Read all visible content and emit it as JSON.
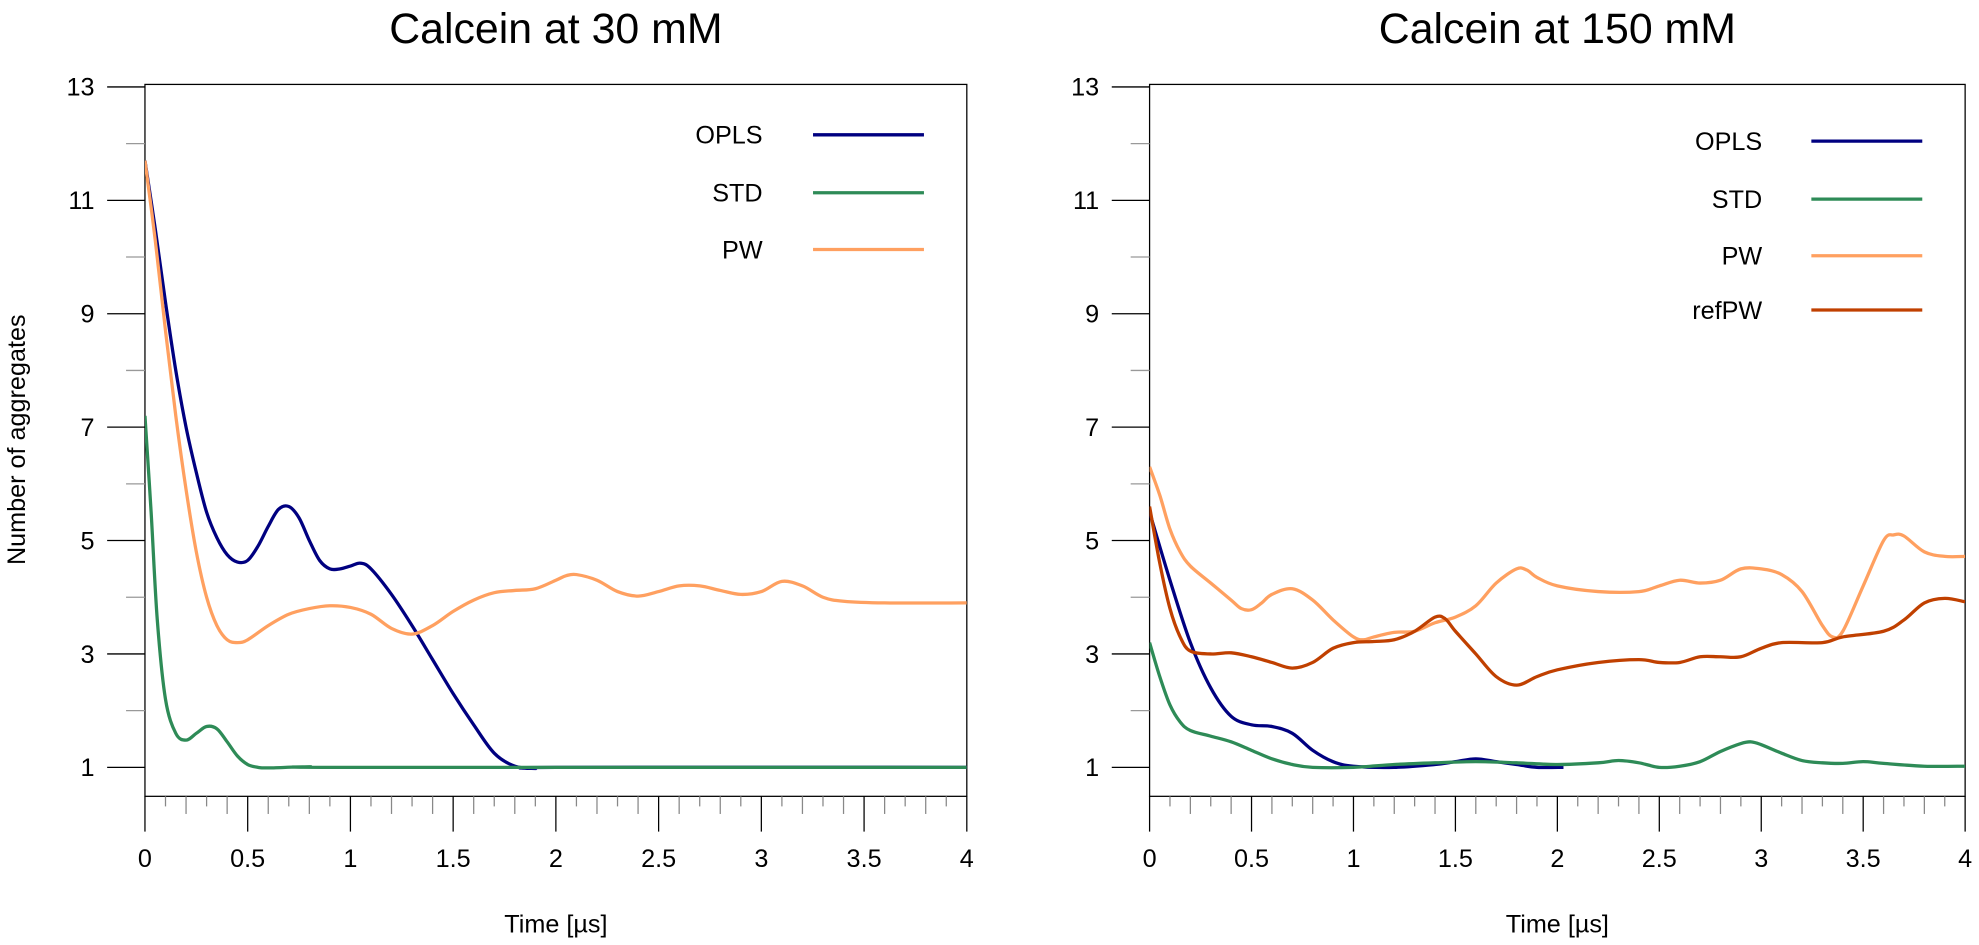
{
  "chart_data": [
    {
      "type": "line",
      "title": "Calcein at 30 mM",
      "xlabel": "Time [µs]",
      "ylabel": "Number of aggregates",
      "xlim": [
        0,
        4
      ],
      "ylim": [
        0.5,
        13
      ],
      "xticks": [
        "0",
        "0.5",
        "1",
        "1.5",
        "2",
        "2.5",
        "3",
        "3.5",
        "4"
      ],
      "yticks": [
        "1",
        "3",
        "5",
        "7",
        "9",
        "11",
        "13"
      ],
      "grid": false,
      "legend_position": "top-right",
      "series": [
        {
          "name": "OPLS",
          "color": "#000080",
          "x": [
            0,
            0.05,
            0.1,
            0.15,
            0.2,
            0.25,
            0.3,
            0.35,
            0.4,
            0.45,
            0.5,
            0.55,
            0.6,
            0.65,
            0.7,
            0.75,
            0.8,
            0.85,
            0.9,
            0.95,
            1.0,
            1.05,
            1.1,
            1.2,
            1.3,
            1.4,
            1.5,
            1.6,
            1.7,
            1.8,
            1.9,
            2.0,
            4.0
          ],
          "y": [
            11.7,
            10.5,
            9.2,
            8.0,
            7.0,
            6.2,
            5.5,
            5.05,
            4.75,
            4.62,
            4.65,
            4.9,
            5.25,
            5.55,
            5.6,
            5.4,
            5.0,
            4.65,
            4.5,
            4.5,
            4.55,
            4.6,
            4.5,
            4.05,
            3.5,
            2.9,
            2.3,
            1.75,
            1.25,
            1.02,
            0.98,
            1.0,
            1.0
          ]
        },
        {
          "name": "STD",
          "color": "#2e8b57",
          "x": [
            0,
            0.03,
            0.06,
            0.1,
            0.15,
            0.2,
            0.25,
            0.3,
            0.35,
            0.4,
            0.45,
            0.5,
            0.55,
            0.6,
            0.8,
            1.0,
            4.0
          ],
          "y": [
            7.2,
            5.5,
            3.6,
            2.2,
            1.6,
            1.48,
            1.6,
            1.72,
            1.68,
            1.45,
            1.2,
            1.05,
            1.0,
            0.99,
            1.01,
            1.0,
            1.0
          ]
        },
        {
          "name": "PW",
          "color": "#ffa060",
          "x": [
            0,
            0.05,
            0.1,
            0.15,
            0.2,
            0.25,
            0.3,
            0.35,
            0.4,
            0.45,
            0.5,
            0.6,
            0.7,
            0.8,
            0.9,
            1.0,
            1.1,
            1.2,
            1.3,
            1.4,
            1.5,
            1.6,
            1.7,
            1.8,
            1.9,
            2.0,
            2.05,
            2.1,
            2.2,
            2.3,
            2.4,
            2.5,
            2.6,
            2.7,
            2.8,
            2.9,
            3.0,
            3.1,
            3.2,
            3.3,
            3.4,
            3.6,
            4.0
          ],
          "y": [
            11.7,
            10.3,
            8.7,
            7.2,
            5.9,
            4.8,
            4.0,
            3.5,
            3.25,
            3.2,
            3.25,
            3.5,
            3.7,
            3.8,
            3.85,
            3.82,
            3.7,
            3.45,
            3.35,
            3.5,
            3.75,
            3.95,
            4.08,
            4.12,
            4.15,
            4.3,
            4.38,
            4.4,
            4.3,
            4.1,
            4.02,
            4.1,
            4.2,
            4.2,
            4.12,
            4.05,
            4.1,
            4.28,
            4.2,
            4.0,
            3.93,
            3.9,
            3.9
          ]
        }
      ]
    },
    {
      "type": "line",
      "title": "Calcein at 150 mM",
      "xlabel": "Time [µs]",
      "ylabel": "",
      "xlim": [
        0,
        4
      ],
      "ylim": [
        0.5,
        13
      ],
      "xticks": [
        "0",
        "0.5",
        "1",
        "1.5",
        "2",
        "2.5",
        "3",
        "3.5",
        "4"
      ],
      "yticks": [
        "1",
        "3",
        "5",
        "7",
        "9",
        "11",
        "13"
      ],
      "grid": false,
      "legend_position": "top-right",
      "series": [
        {
          "name": "OPLS",
          "color": "#000080",
          "x": [
            0,
            0.1,
            0.2,
            0.3,
            0.4,
            0.5,
            0.6,
            0.7,
            0.8,
            0.9,
            1.0,
            1.2,
            1.4,
            1.5,
            1.6,
            1.7,
            1.8,
            1.9,
            2.03
          ],
          "y": [
            5.5,
            4.3,
            3.2,
            2.4,
            1.9,
            1.75,
            1.72,
            1.6,
            1.3,
            1.1,
            1.02,
            1.0,
            1.05,
            1.1,
            1.15,
            1.1,
            1.05,
            1.0,
            1.0
          ]
        },
        {
          "name": "STD",
          "color": "#2e8b57",
          "x": [
            0,
            0.05,
            0.1,
            0.15,
            0.2,
            0.3,
            0.4,
            0.5,
            0.6,
            0.7,
            0.8,
            1.0,
            1.2,
            1.4,
            1.6,
            1.8,
            2.0,
            2.2,
            2.3,
            2.4,
            2.5,
            2.6,
            2.7,
            2.8,
            2.9,
            2.95,
            3.0,
            3.1,
            3.2,
            3.3,
            3.4,
            3.5,
            3.6,
            3.8,
            4.0
          ],
          "y": [
            3.2,
            2.6,
            2.1,
            1.8,
            1.65,
            1.55,
            1.45,
            1.3,
            1.15,
            1.05,
            1.0,
            1.0,
            1.05,
            1.08,
            1.1,
            1.08,
            1.05,
            1.08,
            1.12,
            1.08,
            1.0,
            1.02,
            1.1,
            1.28,
            1.42,
            1.45,
            1.4,
            1.25,
            1.12,
            1.08,
            1.07,
            1.1,
            1.07,
            1.02,
            1.02
          ]
        },
        {
          "name": "PW",
          "color": "#ffa060",
          "x": [
            0,
            0.05,
            0.1,
            0.15,
            0.2,
            0.3,
            0.4,
            0.45,
            0.5,
            0.55,
            0.6,
            0.7,
            0.8,
            0.9,
            1.0,
            1.05,
            1.1,
            1.2,
            1.3,
            1.4,
            1.5,
            1.6,
            1.7,
            1.8,
            1.85,
            1.9,
            2.0,
            2.2,
            2.4,
            2.5,
            2.6,
            2.7,
            2.8,
            2.9,
            3.0,
            3.1,
            3.2,
            3.3,
            3.35,
            3.4,
            3.5,
            3.6,
            3.65,
            3.7,
            3.8,
            3.9,
            4.0
          ],
          "y": [
            6.3,
            5.8,
            5.2,
            4.8,
            4.55,
            4.25,
            3.95,
            3.8,
            3.78,
            3.9,
            4.05,
            4.15,
            3.95,
            3.6,
            3.3,
            3.25,
            3.3,
            3.38,
            3.4,
            3.55,
            3.65,
            3.85,
            4.25,
            4.5,
            4.48,
            4.35,
            4.2,
            4.1,
            4.1,
            4.2,
            4.3,
            4.25,
            4.3,
            4.5,
            4.5,
            4.4,
            4.1,
            3.5,
            3.3,
            3.4,
            4.2,
            5.0,
            5.1,
            5.08,
            4.8,
            4.72,
            4.72
          ]
        },
        {
          "name": "refPW",
          "color": "#c04000",
          "x": [
            0,
            0.05,
            0.1,
            0.15,
            0.2,
            0.3,
            0.4,
            0.5,
            0.6,
            0.7,
            0.8,
            0.9,
            1.0,
            1.1,
            1.2,
            1.3,
            1.4,
            1.45,
            1.5,
            1.6,
            1.7,
            1.8,
            1.9,
            2.0,
            2.2,
            2.4,
            2.5,
            2.6,
            2.7,
            2.8,
            2.9,
            3.0,
            3.1,
            3.3,
            3.4,
            3.6,
            3.7,
            3.8,
            3.9,
            4.0
          ],
          "y": [
            5.6,
            4.6,
            3.8,
            3.3,
            3.05,
            3.0,
            3.02,
            2.95,
            2.85,
            2.75,
            2.85,
            3.1,
            3.2,
            3.22,
            3.25,
            3.4,
            3.65,
            3.62,
            3.4,
            3.0,
            2.6,
            2.45,
            2.6,
            2.72,
            2.85,
            2.9,
            2.85,
            2.85,
            2.95,
            2.95,
            2.95,
            3.1,
            3.2,
            3.2,
            3.3,
            3.4,
            3.6,
            3.9,
            3.98,
            3.92
          ]
        }
      ]
    }
  ]
}
